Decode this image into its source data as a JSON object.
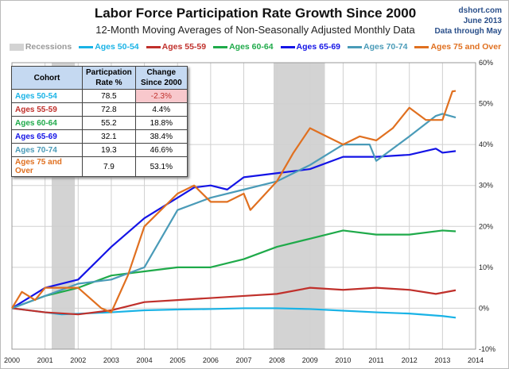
{
  "header": {
    "title": "Labor Force Participation Rate Growth Since 2000",
    "subtitle": "12-Month Moving Averages of Non-Seasonally Adjusted Monthly Data",
    "source": "dshort.com",
    "date": "June 2013",
    "note": "Data through May"
  },
  "table": {
    "headers": [
      "Cohort",
      "Particpation Rate %",
      "Change Since 2000"
    ],
    "rows": [
      [
        "Ages 50-54",
        "78.5",
        "-2.3%"
      ],
      [
        "Ages 55-59",
        "72.8",
        "4.4%"
      ],
      [
        "Ages 60-64",
        "55.2",
        "18.8%"
      ],
      [
        "Ages 65-69",
        "32.1",
        "38.4%"
      ],
      [
        "Ages 70-74",
        "19.3",
        "46.6%"
      ],
      [
        "Ages 75 and Over",
        "7.9",
        "53.1%"
      ]
    ],
    "negative_highlight": "#f8c8cc"
  },
  "chart_data": {
    "type": "line",
    "title": "Labor Force Participation Rate Growth Since 2000",
    "xlabel": "",
    "ylabel": "",
    "xlim": [
      2000,
      2014
    ],
    "ylim": [
      -10,
      60
    ],
    "xticks": [
      "2000",
      "2001",
      "2002",
      "2003",
      "2004",
      "2005",
      "2006",
      "2007",
      "2008",
      "2009",
      "2010",
      "2011",
      "2012",
      "2013",
      "2014"
    ],
    "yticks": [
      "-10%",
      "0%",
      "10%",
      "20%",
      "30%",
      "40%",
      "50%",
      "60%"
    ],
    "recessions": {
      "label": "Recessions",
      "color": "#d3d3d3",
      "periods": [
        [
          2001.2,
          2001.9
        ],
        [
          2007.9,
          2009.45
        ]
      ]
    },
    "legend_position": "top",
    "series": [
      {
        "name": "Ages 50-54",
        "color": "#19b3e6",
        "points": [
          [
            2000,
            0
          ],
          [
            2001,
            -1
          ],
          [
            2001.5,
            -1.5
          ],
          [
            2003,
            -1
          ],
          [
            2004,
            -0.5
          ],
          [
            2005,
            -0.3
          ],
          [
            2006,
            -0.2
          ],
          [
            2007,
            0
          ],
          [
            2008,
            0
          ],
          [
            2009,
            -0.2
          ],
          [
            2010,
            -0.6
          ],
          [
            2011,
            -1
          ],
          [
            2012,
            -1.3
          ],
          [
            2013,
            -1.9
          ],
          [
            2013.4,
            -2.3
          ]
        ]
      },
      {
        "name": "Ages 55-59",
        "color": "#c0302b",
        "points": [
          [
            2000,
            0
          ],
          [
            2001,
            -1
          ],
          [
            2002,
            -1.5
          ],
          [
            2003,
            -0.5
          ],
          [
            2004,
            1.5
          ],
          [
            2005,
            2
          ],
          [
            2006,
            2.5
          ],
          [
            2007,
            3
          ],
          [
            2008,
            3.5
          ],
          [
            2009,
            5
          ],
          [
            2010,
            4.5
          ],
          [
            2011,
            5
          ],
          [
            2012,
            4.5
          ],
          [
            2012.8,
            3.5
          ],
          [
            2013.4,
            4.4
          ]
        ]
      },
      {
        "name": "Ages 60-64",
        "color": "#1faa4a",
        "points": [
          [
            2000,
            0
          ],
          [
            2001,
            3
          ],
          [
            2002,
            5
          ],
          [
            2003,
            8
          ],
          [
            2004,
            9
          ],
          [
            2005,
            10
          ],
          [
            2006,
            10
          ],
          [
            2007,
            12
          ],
          [
            2008,
            15
          ],
          [
            2009,
            17
          ],
          [
            2010,
            19
          ],
          [
            2011,
            18
          ],
          [
            2012,
            18
          ],
          [
            2013,
            19
          ],
          [
            2013.4,
            18.8
          ]
        ]
      },
      {
        "name": "Ages 65-69",
        "color": "#1414e6",
        "points": [
          [
            2000,
            0
          ],
          [
            2001,
            5
          ],
          [
            2002,
            7
          ],
          [
            2003,
            15
          ],
          [
            2004,
            22
          ],
          [
            2005,
            27
          ],
          [
            2005.5,
            29.5
          ],
          [
            2006,
            30
          ],
          [
            2006.5,
            29
          ],
          [
            2007,
            32
          ],
          [
            2008,
            33
          ],
          [
            2009,
            34
          ],
          [
            2010,
            37
          ],
          [
            2011,
            37
          ],
          [
            2012,
            37.5
          ],
          [
            2012.8,
            39
          ],
          [
            2013,
            38
          ],
          [
            2013.4,
            38.4
          ]
        ]
      },
      {
        "name": "Ages 70-74",
        "color": "#4a9bb8",
        "points": [
          [
            2000,
            0
          ],
          [
            2001,
            3
          ],
          [
            2002,
            6
          ],
          [
            2003,
            7
          ],
          [
            2004,
            10
          ],
          [
            2005,
            24
          ],
          [
            2006,
            27
          ],
          [
            2007,
            29
          ],
          [
            2008,
            31
          ],
          [
            2009,
            35
          ],
          [
            2010,
            40
          ],
          [
            2010.8,
            40
          ],
          [
            2011,
            36
          ],
          [
            2012,
            42
          ],
          [
            2012.8,
            47
          ],
          [
            2013,
            47.5
          ],
          [
            2013.4,
            46.6
          ]
        ]
      },
      {
        "name": "Ages 75 and Over",
        "color": "#e07020",
        "points": [
          [
            2000,
            0
          ],
          [
            2000.3,
            4
          ],
          [
            2000.7,
            2
          ],
          [
            2001,
            5
          ],
          [
            2002,
            5
          ],
          [
            2002.7,
            0
          ],
          [
            2003,
            -1
          ],
          [
            2003.5,
            8
          ],
          [
            2004,
            20
          ],
          [
            2005,
            28
          ],
          [
            2005.5,
            30
          ],
          [
            2006,
            26
          ],
          [
            2006.5,
            26
          ],
          [
            2007,
            28
          ],
          [
            2007.2,
            24
          ],
          [
            2008,
            31
          ],
          [
            2008.5,
            38
          ],
          [
            2009,
            44
          ],
          [
            2009.5,
            42
          ],
          [
            2010,
            40
          ],
          [
            2010.5,
            42
          ],
          [
            2011,
            41
          ],
          [
            2011.5,
            44
          ],
          [
            2012,
            49
          ],
          [
            2012.5,
            46
          ],
          [
            2013,
            46
          ],
          [
            2013.3,
            53
          ],
          [
            2013.4,
            53.1
          ]
        ]
      }
    ]
  }
}
